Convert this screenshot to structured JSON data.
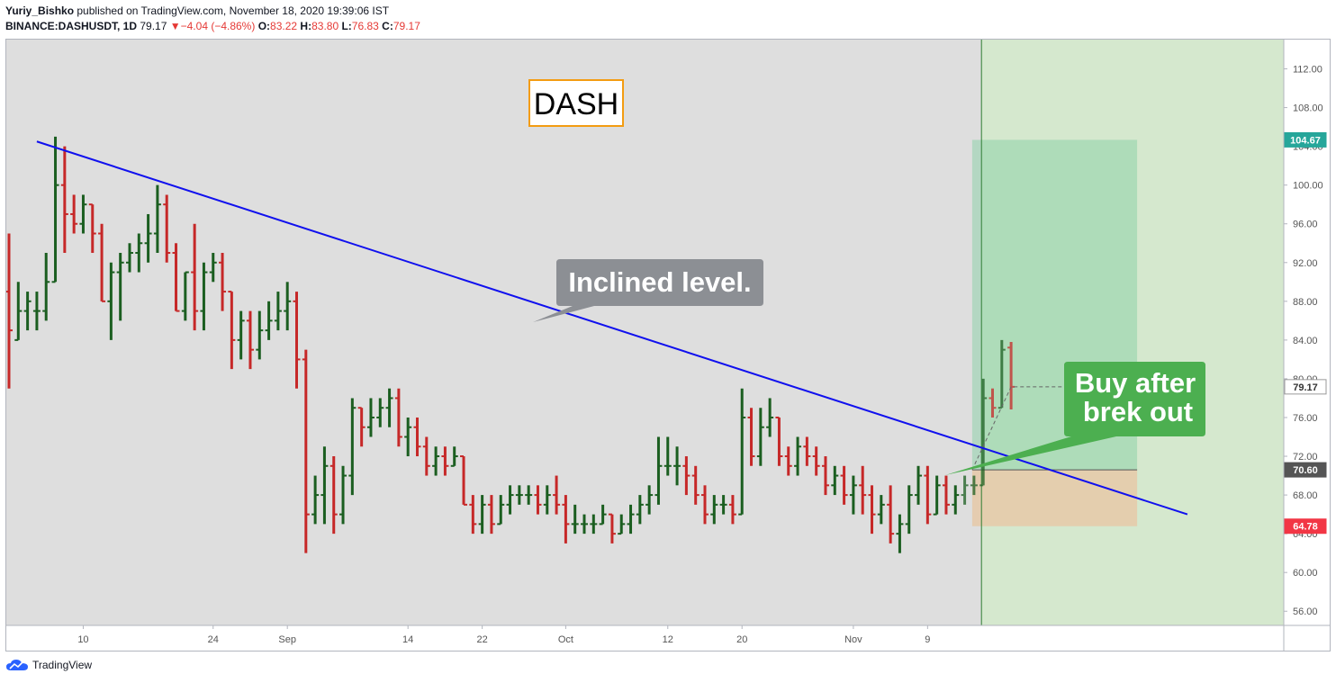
{
  "header": {
    "author": "Yuriy_Bishko",
    "published_text": "published on TradingView.com, November 18, 2020 19:39:06 IST",
    "symbol": "BINANCE:DASHUSDT, 1D",
    "last": "79.17",
    "change_arrow": "▼",
    "change": "−4.04 (−4.86%)",
    "o_label": "O:",
    "o_value": "83.22",
    "h_label": "H:",
    "h_value": "83.80",
    "l_label": "L:",
    "l_value": "76.83",
    "c_label": "C:",
    "c_value": "79.17"
  },
  "footer": {
    "brand": "TradingView"
  },
  "annotations": {
    "title_box": "DASH",
    "callout_inclined": "Inclined level.",
    "callout_buy_line1": "Buy after",
    "callout_buy_line2": "brek out"
  },
  "colors": {
    "up": "#1b5e20",
    "down": "#c62828",
    "trendline": "#1010ee",
    "plot_bg": "#dedede",
    "future_bg": "#d5e8ce",
    "target_zone": "#7fcf9f",
    "stop_zone": "#e6c9a8",
    "callout_gray": "#8c8f94",
    "callout_green": "#4caf50",
    "title_border": "#f39c12",
    "badge_target": "#26a69a",
    "badge_entry": "#555555",
    "badge_stop": "#f23645"
  },
  "chart_data": {
    "type": "ohlc",
    "ylim": [
      55,
      114
    ],
    "yticks": [
      "112.00",
      "108.00",
      "104.00",
      "100.00",
      "96.00",
      "92.00",
      "88.00",
      "84.00",
      "80.00",
      "76.00",
      "72.00",
      "68.00",
      "64.00",
      "60.00",
      "56.00"
    ],
    "xticks": [
      {
        "label": "10",
        "date": "2020-08-10"
      },
      {
        "label": "24",
        "date": "2020-08-24"
      },
      {
        "label": "Sep",
        "date": "2020-09-01"
      },
      {
        "label": "14",
        "date": "2020-09-14"
      },
      {
        "label": "22",
        "date": "2020-09-22"
      },
      {
        "label": "Oct",
        "date": "2020-10-01"
      },
      {
        "label": "12",
        "date": "2020-10-12"
      },
      {
        "label": "20",
        "date": "2020-10-20"
      },
      {
        "label": "Nov",
        "date": "2020-11-01"
      },
      {
        "label": "9",
        "date": "2020-11-09"
      }
    ],
    "x_range": [
      "2020-08-02",
      "2020-12-17"
    ],
    "bars": [
      {
        "date": "2020-08-02",
        "o": 89,
        "h": 95,
        "l": 79,
        "c": 85
      },
      {
        "date": "2020-08-03",
        "o": 84,
        "h": 90,
        "l": 84,
        "c": 87
      },
      {
        "date": "2020-08-04",
        "o": 87,
        "h": 89,
        "l": 85,
        "c": 88
      },
      {
        "date": "2020-08-05",
        "o": 87,
        "h": 89,
        "l": 85,
        "c": 87
      },
      {
        "date": "2020-08-06",
        "o": 87,
        "h": 93,
        "l": 86,
        "c": 90
      },
      {
        "date": "2020-08-07",
        "o": 90,
        "h": 105,
        "l": 90,
        "c": 100
      },
      {
        "date": "2020-08-08",
        "o": 100,
        "h": 104,
        "l": 93,
        "c": 97
      },
      {
        "date": "2020-08-09",
        "o": 97,
        "h": 99,
        "l": 95,
        "c": 96
      },
      {
        "date": "2020-08-10",
        "o": 96,
        "h": 99,
        "l": 95,
        "c": 98
      },
      {
        "date": "2020-08-11",
        "o": 98,
        "h": 98,
        "l": 93,
        "c": 95
      },
      {
        "date": "2020-08-12",
        "o": 95,
        "h": 96,
        "l": 88,
        "c": 88
      },
      {
        "date": "2020-08-13",
        "o": 88,
        "h": 92,
        "l": 84,
        "c": 91
      },
      {
        "date": "2020-08-14",
        "o": 91,
        "h": 93,
        "l": 86,
        "c": 92
      },
      {
        "date": "2020-08-15",
        "o": 92,
        "h": 94,
        "l": 91,
        "c": 93
      },
      {
        "date": "2020-08-16",
        "o": 93,
        "h": 95,
        "l": 91,
        "c": 94
      },
      {
        "date": "2020-08-17",
        "o": 94,
        "h": 97,
        "l": 92,
        "c": 95
      },
      {
        "date": "2020-08-18",
        "o": 95,
        "h": 100,
        "l": 93,
        "c": 98
      },
      {
        "date": "2020-08-19",
        "o": 98,
        "h": 99,
        "l": 92,
        "c": 93
      },
      {
        "date": "2020-08-20",
        "o": 93,
        "h": 94,
        "l": 87,
        "c": 87
      },
      {
        "date": "2020-08-21",
        "o": 87,
        "h": 91,
        "l": 86,
        "c": 91
      },
      {
        "date": "2020-08-22",
        "o": 91,
        "h": 96,
        "l": 85,
        "c": 87
      },
      {
        "date": "2020-08-23",
        "o": 87,
        "h": 92,
        "l": 85,
        "c": 91
      },
      {
        "date": "2020-08-24",
        "o": 91,
        "h": 93,
        "l": 90,
        "c": 92
      },
      {
        "date": "2020-08-25",
        "o": 92,
        "h": 93,
        "l": 87,
        "c": 89
      },
      {
        "date": "2020-08-26",
        "o": 89,
        "h": 89,
        "l": 81,
        "c": 84
      },
      {
        "date": "2020-08-27",
        "o": 84,
        "h": 87,
        "l": 82,
        "c": 86
      },
      {
        "date": "2020-08-28",
        "o": 86,
        "h": 87,
        "l": 81,
        "c": 83
      },
      {
        "date": "2020-08-29",
        "o": 83,
        "h": 87,
        "l": 82,
        "c": 85
      },
      {
        "date": "2020-08-30",
        "o": 85,
        "h": 88,
        "l": 84,
        "c": 86
      },
      {
        "date": "2020-08-31",
        "o": 86,
        "h": 89,
        "l": 85,
        "c": 87
      },
      {
        "date": "2020-09-01",
        "o": 87,
        "h": 90,
        "l": 85,
        "c": 88
      },
      {
        "date": "2020-09-02",
        "o": 88,
        "h": 89,
        "l": 79,
        "c": 82
      },
      {
        "date": "2020-09-03",
        "o": 82,
        "h": 83,
        "l": 62,
        "c": 66
      },
      {
        "date": "2020-09-04",
        "o": 66,
        "h": 70,
        "l": 65,
        "c": 68
      },
      {
        "date": "2020-09-05",
        "o": 68,
        "h": 73,
        "l": 65,
        "c": 71
      },
      {
        "date": "2020-09-06",
        "o": 71,
        "h": 72,
        "l": 64,
        "c": 66
      },
      {
        "date": "2020-09-07",
        "o": 66,
        "h": 71,
        "l": 65,
        "c": 70
      },
      {
        "date": "2020-09-08",
        "o": 70,
        "h": 78,
        "l": 68,
        "c": 77
      },
      {
        "date": "2020-09-09",
        "o": 77,
        "h": 77,
        "l": 73,
        "c": 75
      },
      {
        "date": "2020-09-10",
        "o": 75,
        "h": 78,
        "l": 74,
        "c": 76
      },
      {
        "date": "2020-09-11",
        "o": 76,
        "h": 78,
        "l": 75,
        "c": 77
      },
      {
        "date": "2020-09-12",
        "o": 77,
        "h": 79,
        "l": 75,
        "c": 78
      },
      {
        "date": "2020-09-13",
        "o": 78,
        "h": 79,
        "l": 73,
        "c": 74
      },
      {
        "date": "2020-09-14",
        "o": 74,
        "h": 76,
        "l": 72,
        "c": 75
      },
      {
        "date": "2020-09-15",
        "o": 75,
        "h": 76,
        "l": 72,
        "c": 73
      },
      {
        "date": "2020-09-16",
        "o": 73,
        "h": 74,
        "l": 70,
        "c": 71
      },
      {
        "date": "2020-09-17",
        "o": 71,
        "h": 73,
        "l": 70,
        "c": 72
      },
      {
        "date": "2020-09-18",
        "o": 72,
        "h": 73,
        "l": 70,
        "c": 71
      },
      {
        "date": "2020-09-19",
        "o": 71,
        "h": 73,
        "l": 71,
        "c": 72
      },
      {
        "date": "2020-09-20",
        "o": 72,
        "h": 72,
        "l": 67,
        "c": 67
      },
      {
        "date": "2020-09-21",
        "o": 67,
        "h": 68,
        "l": 64,
        "c": 65
      },
      {
        "date": "2020-09-22",
        "o": 65,
        "h": 68,
        "l": 64,
        "c": 67
      },
      {
        "date": "2020-09-23",
        "o": 67,
        "h": 68,
        "l": 64,
        "c": 65
      },
      {
        "date": "2020-09-24",
        "o": 65,
        "h": 68,
        "l": 65,
        "c": 67
      },
      {
        "date": "2020-09-25",
        "o": 67,
        "h": 69,
        "l": 66,
        "c": 68
      },
      {
        "date": "2020-09-26",
        "o": 68,
        "h": 69,
        "l": 67,
        "c": 68
      },
      {
        "date": "2020-09-27",
        "o": 68,
        "h": 69,
        "l": 67,
        "c": 68
      },
      {
        "date": "2020-09-28",
        "o": 68,
        "h": 69,
        "l": 66,
        "c": 67
      },
      {
        "date": "2020-09-29",
        "o": 67,
        "h": 69,
        "l": 66,
        "c": 68
      },
      {
        "date": "2020-09-30",
        "o": 68,
        "h": 70,
        "l": 66,
        "c": 67
      },
      {
        "date": "2020-10-01",
        "o": 67,
        "h": 68,
        "l": 63,
        "c": 65
      },
      {
        "date": "2020-10-02",
        "o": 65,
        "h": 67,
        "l": 64,
        "c": 65
      },
      {
        "date": "2020-10-03",
        "o": 65,
        "h": 66,
        "l": 64,
        "c": 65
      },
      {
        "date": "2020-10-04",
        "o": 65,
        "h": 66,
        "l": 64,
        "c": 65
      },
      {
        "date": "2020-10-05",
        "o": 65,
        "h": 67,
        "l": 65,
        "c": 66
      },
      {
        "date": "2020-10-06",
        "o": 66,
        "h": 66,
        "l": 63,
        "c": 64
      },
      {
        "date": "2020-10-07",
        "o": 64,
        "h": 66,
        "l": 64,
        "c": 65
      },
      {
        "date": "2020-10-08",
        "o": 65,
        "h": 67,
        "l": 64,
        "c": 66
      },
      {
        "date": "2020-10-09",
        "o": 66,
        "h": 68,
        "l": 65,
        "c": 67
      },
      {
        "date": "2020-10-10",
        "o": 67,
        "h": 69,
        "l": 66,
        "c": 68
      },
      {
        "date": "2020-10-11",
        "o": 68,
        "h": 74,
        "l": 67,
        "c": 71
      },
      {
        "date": "2020-10-12",
        "o": 71,
        "h": 74,
        "l": 70,
        "c": 71
      },
      {
        "date": "2020-10-13",
        "o": 71,
        "h": 73,
        "l": 69,
        "c": 71
      },
      {
        "date": "2020-10-14",
        "o": 71,
        "h": 72,
        "l": 68,
        "c": 70
      },
      {
        "date": "2020-10-15",
        "o": 70,
        "h": 71,
        "l": 67,
        "c": 68
      },
      {
        "date": "2020-10-16",
        "o": 68,
        "h": 69,
        "l": 65,
        "c": 66
      },
      {
        "date": "2020-10-17",
        "o": 66,
        "h": 68,
        "l": 65,
        "c": 67
      },
      {
        "date": "2020-10-18",
        "o": 67,
        "h": 68,
        "l": 66,
        "c": 67
      },
      {
        "date": "2020-10-19",
        "o": 67,
        "h": 68,
        "l": 65,
        "c": 66
      },
      {
        "date": "2020-10-20",
        "o": 66,
        "h": 79,
        "l": 66,
        "c": 76
      },
      {
        "date": "2020-10-21",
        "o": 76,
        "h": 77,
        "l": 71,
        "c": 72
      },
      {
        "date": "2020-10-22",
        "o": 72,
        "h": 77,
        "l": 71,
        "c": 75
      },
      {
        "date": "2020-10-23",
        "o": 75,
        "h": 78,
        "l": 74,
        "c": 76
      },
      {
        "date": "2020-10-24",
        "o": 76,
        "h": 76,
        "l": 71,
        "c": 72
      },
      {
        "date": "2020-10-25",
        "o": 72,
        "h": 73,
        "l": 70,
        "c": 71
      },
      {
        "date": "2020-10-26",
        "o": 71,
        "h": 74,
        "l": 70,
        "c": 73
      },
      {
        "date": "2020-10-27",
        "o": 73,
        "h": 74,
        "l": 71,
        "c": 72
      },
      {
        "date": "2020-10-28",
        "o": 72,
        "h": 73,
        "l": 70,
        "c": 71
      },
      {
        "date": "2020-10-29",
        "o": 71,
        "h": 72,
        "l": 68,
        "c": 69
      },
      {
        "date": "2020-10-30",
        "o": 69,
        "h": 71,
        "l": 68,
        "c": 70
      },
      {
        "date": "2020-10-31",
        "o": 70,
        "h": 71,
        "l": 67,
        "c": 68
      },
      {
        "date": "2020-11-01",
        "o": 68,
        "h": 70,
        "l": 66,
        "c": 69
      },
      {
        "date": "2020-11-02",
        "o": 69,
        "h": 71,
        "l": 66,
        "c": 68
      },
      {
        "date": "2020-11-03",
        "o": 68,
        "h": 69,
        "l": 64,
        "c": 66
      },
      {
        "date": "2020-11-04",
        "o": 66,
        "h": 68,
        "l": 65,
        "c": 67
      },
      {
        "date": "2020-11-05",
        "o": 67,
        "h": 69,
        "l": 63,
        "c": 64
      },
      {
        "date": "2020-11-06",
        "o": 64,
        "h": 66,
        "l": 62,
        "c": 65
      },
      {
        "date": "2020-11-07",
        "o": 65,
        "h": 69,
        "l": 64,
        "c": 68
      },
      {
        "date": "2020-11-08",
        "o": 68,
        "h": 71,
        "l": 67,
        "c": 70
      },
      {
        "date": "2020-11-09",
        "o": 70,
        "h": 71,
        "l": 65,
        "c": 66
      },
      {
        "date": "2020-11-10",
        "o": 66,
        "h": 70,
        "l": 66,
        "c": 69
      },
      {
        "date": "2020-11-11",
        "o": 69,
        "h": 70,
        "l": 66,
        "c": 67
      },
      {
        "date": "2020-11-12",
        "o": 67,
        "h": 69,
        "l": 66,
        "c": 68
      },
      {
        "date": "2020-11-13",
        "o": 68,
        "h": 70,
        "l": 67,
        "c": 69
      },
      {
        "date": "2020-11-14",
        "o": 69,
        "h": 70,
        "l": 68,
        "c": 69
      },
      {
        "date": "2020-11-15",
        "o": 69,
        "h": 80,
        "l": 69,
        "c": 78
      },
      {
        "date": "2020-11-16",
        "o": 78,
        "h": 79,
        "l": 76,
        "c": 77
      },
      {
        "date": "2020-11-17",
        "o": 77,
        "h": 84,
        "l": 77,
        "c": 83
      },
      {
        "date": "2020-11-18",
        "o": 83.22,
        "h": 83.8,
        "l": 76.83,
        "c": 79.17
      }
    ],
    "trendline": {
      "start": {
        "date": "2020-08-05",
        "price": 104.5
      },
      "end": {
        "date": "2020-12-07",
        "price": 66.0
      }
    },
    "position": {
      "start_date": "2020-11-14",
      "end_date": "2020-12-01",
      "target": 104.67,
      "entry": 70.6,
      "stop": 64.78
    },
    "forecast_start_date": "2020-11-15",
    "price_labels": {
      "target": "104.67",
      "last": "79.17",
      "entry": "70.60",
      "stop": "64.78"
    }
  }
}
